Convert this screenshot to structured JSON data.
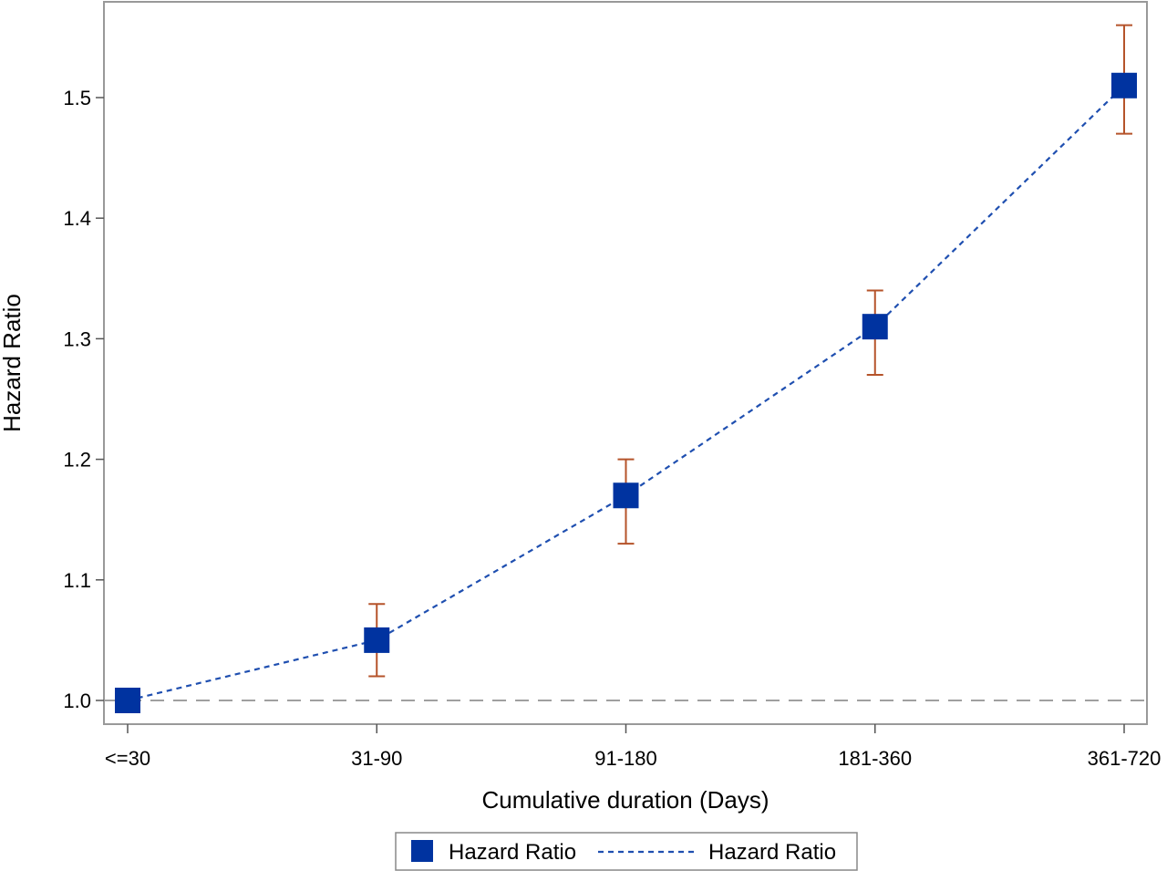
{
  "chart_data": {
    "type": "line",
    "categories": [
      "<=30",
      "31-90",
      "91-180",
      "181-360",
      "361-720"
    ],
    "series": [
      {
        "name": "Hazard Ratio",
        "values": [
          1.0,
          1.05,
          1.17,
          1.31,
          1.51
        ],
        "lower": [
          1.0,
          1.02,
          1.13,
          1.27,
          1.47
        ],
        "upper": [
          1.0,
          1.08,
          1.2,
          1.34,
          1.56
        ]
      }
    ],
    "xlabel": "Cumulative duration (Days)",
    "ylabel": "Hazard Ratio",
    "yticks": [
      "1.0",
      "1.1",
      "1.2",
      "1.3",
      "1.4",
      "1.5"
    ],
    "ylim": [
      0.98,
      1.58
    ],
    "reference_line": 1.0,
    "grid": false,
    "legend": {
      "placement": "bottom-center",
      "entries": [
        {
          "label": "Hazard Ratio",
          "kind": "marker"
        },
        {
          "label": "Hazard Ratio",
          "kind": "line"
        }
      ]
    },
    "colors": {
      "marker": "#0033a0",
      "line": "#1f4fb0",
      "error_bar": "#b5532a",
      "reference": "#a0a0a0",
      "frame": "#999999"
    }
  }
}
